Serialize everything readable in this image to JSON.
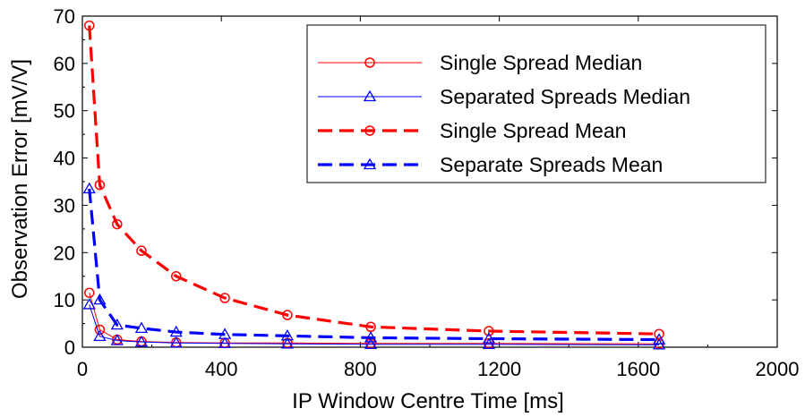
{
  "chart_data": {
    "type": "line",
    "title": "",
    "xlabel": "IP  Window Centre Time [ms]",
    "ylabel": "Observation Error [mV/V]",
    "xlim": [
      0,
      2000
    ],
    "ylim": [
      0,
      70
    ],
    "xticks": [
      "0",
      "400",
      "800",
      "1200",
      "1600",
      "2000"
    ],
    "yticks": [
      "0",
      "10",
      "20",
      "30",
      "40",
      "50",
      "60",
      "70"
    ],
    "grid": false,
    "legend_position": "top-right",
    "series": [
      {
        "name": "Single Spread Median",
        "color": "#ff0000",
        "line": "solid",
        "marker": "circle",
        "x": [
          20,
          50,
          100,
          170,
          270,
          410,
          590,
          830,
          1170,
          1660
        ],
        "y": [
          11.5,
          3.7,
          1.6,
          1.2,
          1.0,
          0.9,
          0.9,
          0.8,
          0.8,
          0.7
        ]
      },
      {
        "name": "Separated Spreads Median",
        "color": "#0000ff",
        "line": "solid",
        "marker": "triangle",
        "x": [
          20,
          50,
          100,
          170,
          270,
          410,
          590,
          830,
          1170,
          1660
        ],
        "y": [
          9.0,
          2.3,
          1.4,
          1.1,
          0.9,
          0.8,
          0.7,
          0.6,
          0.6,
          0.5
        ]
      },
      {
        "name": "Single Spread Mean",
        "color": "#ff0000",
        "line": "dashed",
        "marker": "circle",
        "x": [
          20,
          50,
          100,
          170,
          270,
          410,
          590,
          830,
          1170,
          1660
        ],
        "y": [
          68.0,
          34.3,
          26.0,
          20.4,
          15.0,
          10.4,
          6.8,
          4.3,
          3.4,
          2.8
        ]
      },
      {
        "name": "Separate Spreads Mean",
        "color": "#0000ff",
        "line": "dashed",
        "marker": "triangle",
        "x": [
          20,
          50,
          100,
          170,
          270,
          410,
          590,
          830,
          1170,
          1660
        ],
        "y": [
          33.5,
          10.0,
          4.7,
          4.0,
          3.2,
          2.7,
          2.4,
          2.0,
          1.8,
          1.6
        ]
      }
    ]
  }
}
